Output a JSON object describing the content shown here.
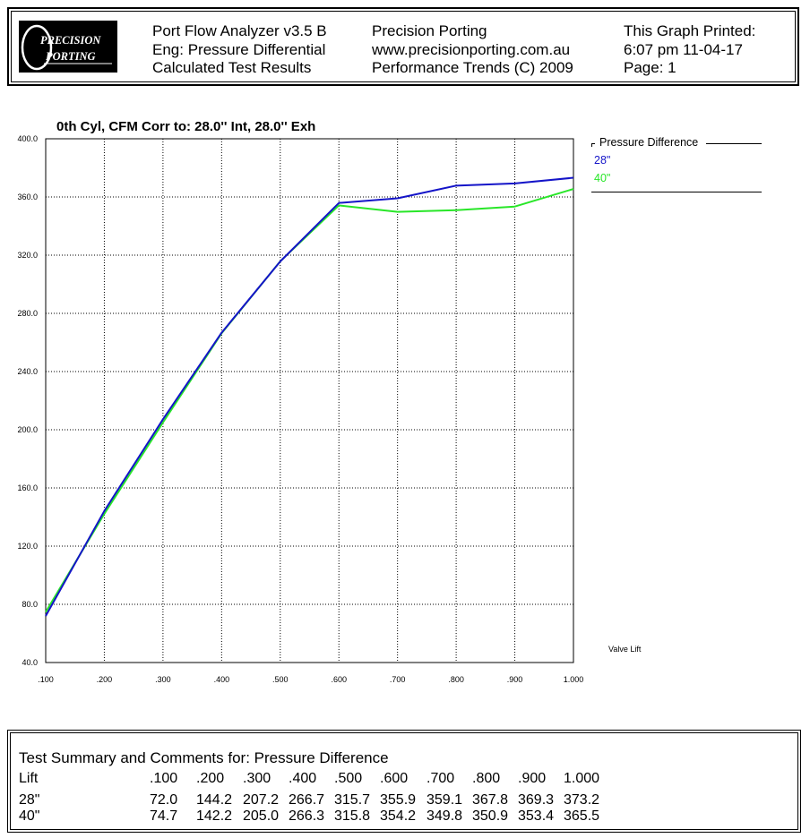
{
  "header": {
    "col1": [
      "Port Flow Analyzer v3.5 B",
      "Eng: Pressure Differential",
      "Calculated Test Results"
    ],
    "col2": [
      "Precision Porting",
      "www.precisionporting.com.au",
      "Performance Trends (C) 2009"
    ],
    "col3": [
      "This Graph Printed:",
      "6:07 pm 11-04-17",
      "Page: 1"
    ],
    "logo_line1": "PRECISION",
    "logo_line2": "PORTING"
  },
  "chart_data": {
    "type": "line",
    "title": "0th Cyl, CFM   Corr to: 28.0'' Int, 28.0'' Exh",
    "xlabel": "Valve Lift",
    "ylabel": "",
    "x": [
      0.1,
      0.2,
      0.3,
      0.4,
      0.5,
      0.6,
      0.7,
      0.8,
      0.9,
      1.0
    ],
    "x_tick_labels": [
      ".100",
      ".200",
      ".300",
      ".400",
      ".500",
      ".600",
      ".700",
      ".800",
      ".900",
      "1.000"
    ],
    "y_tick_labels": [
      "40.0",
      "80.0",
      "120.0",
      "160.0",
      "200.0",
      "240.0",
      "280.0",
      "320.0",
      "360.0",
      "400.0"
    ],
    "xlim": [
      0.1,
      1.0
    ],
    "ylim": [
      40,
      400
    ],
    "grid": true,
    "legend_title": "Pressure Difference",
    "legend_position": "right",
    "series": [
      {
        "name": "28\"",
        "color": "#1414c8",
        "values": [
          72.0,
          144.2,
          207.2,
          266.7,
          315.7,
          355.9,
          359.1,
          367.8,
          369.3,
          373.2
        ]
      },
      {
        "name": "40\"",
        "color": "#28e628",
        "values": [
          74.7,
          142.2,
          205.0,
          266.3,
          315.8,
          354.2,
          349.8,
          350.9,
          353.4,
          365.5
        ]
      }
    ]
  },
  "summary": {
    "title": "Test Summary and Comments for:   Pressure Difference",
    "lift_label": "Lift",
    "lift_values": [
      ".100",
      ".200",
      ".300",
      ".400",
      ".500",
      ".600",
      ".700",
      ".800",
      ".900",
      "1.000"
    ],
    "rows": [
      {
        "label": "28\"",
        "values": [
          "72.0",
          "144.2",
          "207.2",
          "266.7",
          "315.7",
          "355.9",
          "359.1",
          "367.8",
          "369.3",
          "373.2"
        ]
      },
      {
        "label": "40\"",
        "values": [
          "74.7",
          "142.2",
          "205.0",
          "266.3",
          "315.8",
          "354.2",
          "349.8",
          "350.9",
          "353.4",
          "365.5"
        ]
      }
    ]
  }
}
